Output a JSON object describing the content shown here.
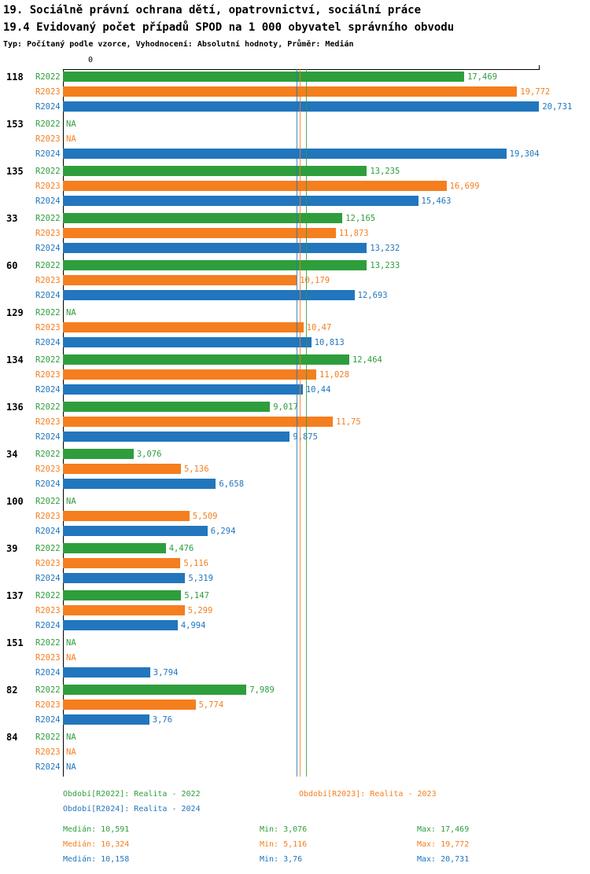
{
  "header": {
    "title1": "19. Sociálně právní ochrana dětí, opatrovnictví, sociální práce",
    "title2": "19.4 Evidovaný počet případů SPOD na 1 000 obyvatel správního obvodu",
    "subtitle": "Typ: Počítaný podle vzorce, Vyhodnocení: Absolutní hodnoty, Průměr: Medián"
  },
  "chart_data": {
    "type": "bar",
    "orientation": "horizontal",
    "x_zero_label": "0",
    "xlim": [
      0,
      20.75
    ],
    "na_label": "NA",
    "grid": false,
    "series": [
      {
        "name": "R2022",
        "color": "#2e9e3c",
        "median": 10.591
      },
      {
        "name": "R2023",
        "color": "#f57e1f",
        "median": 10.324
      },
      {
        "name": "R2024",
        "color": "#2176bd",
        "median": 10.158
      }
    ],
    "groups": [
      {
        "id": "118",
        "values": [
          17.469,
          19.772,
          20.731
        ],
        "labels": [
          "17,469",
          "19,772",
          "20,731"
        ]
      },
      {
        "id": "153",
        "values": [
          null,
          null,
          19.304
        ],
        "labels": [
          null,
          null,
          "19,304"
        ]
      },
      {
        "id": "135",
        "values": [
          13.235,
          16.699,
          15.463
        ],
        "labels": [
          "13,235",
          "16,699",
          "15,463"
        ]
      },
      {
        "id": "33",
        "values": [
          12.165,
          11.873,
          13.232
        ],
        "labels": [
          "12,165",
          "11,873",
          "13,232"
        ]
      },
      {
        "id": "60",
        "values": [
          13.233,
          10.179,
          12.693
        ],
        "labels": [
          "13,233",
          "10,179",
          "12,693"
        ]
      },
      {
        "id": "129",
        "values": [
          null,
          10.47,
          10.813
        ],
        "labels": [
          null,
          "10,47",
          "10,813"
        ]
      },
      {
        "id": "134",
        "values": [
          12.464,
          11.028,
          10.44
        ],
        "labels": [
          "12,464",
          "11,028",
          "10,44"
        ]
      },
      {
        "id": "136",
        "values": [
          9.017,
          11.75,
          9.875
        ],
        "labels": [
          "9,017",
          "11,75",
          "9,875"
        ]
      },
      {
        "id": "34",
        "values": [
          3.076,
          5.136,
          6.658
        ],
        "labels": [
          "3,076",
          "5,136",
          "6,658"
        ]
      },
      {
        "id": "100",
        "values": [
          null,
          5.509,
          6.294
        ],
        "labels": [
          null,
          "5,509",
          "6,294"
        ]
      },
      {
        "id": "39",
        "values": [
          4.476,
          5.116,
          5.319
        ],
        "labels": [
          "4,476",
          "5,116",
          "5,319"
        ]
      },
      {
        "id": "137",
        "values": [
          5.147,
          5.299,
          4.994
        ],
        "labels": [
          "5,147",
          "5,299",
          "4,994"
        ]
      },
      {
        "id": "151",
        "values": [
          null,
          null,
          3.794
        ],
        "labels": [
          null,
          null,
          "3,794"
        ]
      },
      {
        "id": "82",
        "values": [
          7.989,
          5.774,
          3.76
        ],
        "labels": [
          "7,989",
          "5,774",
          "3,76"
        ]
      },
      {
        "id": "84",
        "values": [
          null,
          null,
          null
        ],
        "labels": [
          null,
          null,
          null
        ]
      }
    ]
  },
  "footer": {
    "legend": [
      {
        "text": "Období[R2022]: Realita - 2022"
      },
      {
        "text": "Období[R2023]: Realita - 2023"
      },
      {
        "text": "Období[R2024]: Realita - 2024"
      }
    ],
    "stats": [
      {
        "median": "Medián: 10,591",
        "min": "Min: 3,076",
        "max": "Max: 17,469"
      },
      {
        "median": "Medián: 10,324",
        "min": "Min: 5,116",
        "max": "Max: 19,772"
      },
      {
        "median": "Medián: 10,158",
        "min": "Min: 3,76",
        "max": "Max: 20,731"
      }
    ]
  }
}
